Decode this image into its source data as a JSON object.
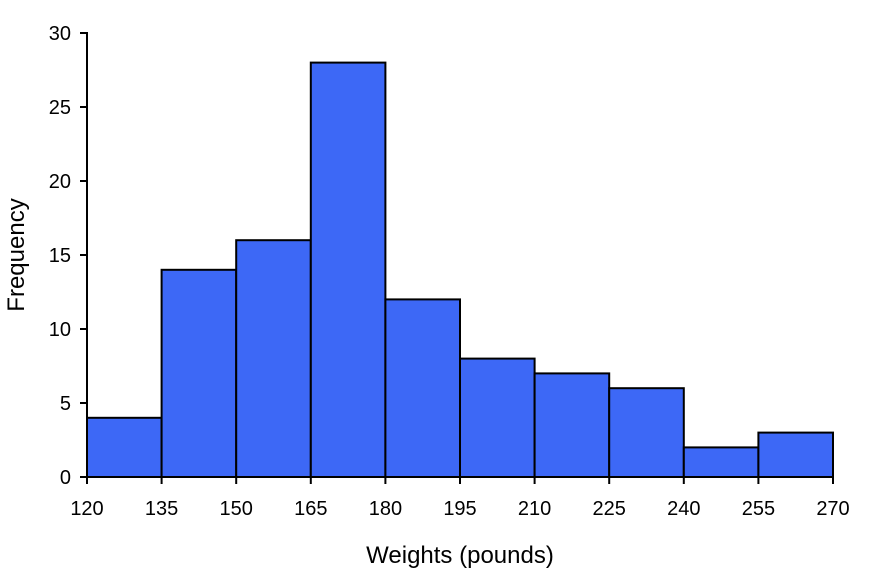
{
  "chart_data": {
    "type": "bar",
    "title": "",
    "xlabel": "Weights (pounds)",
    "ylabel": "Frequency",
    "bin_edges": [
      120,
      135,
      150,
      165,
      180,
      195,
      210,
      225,
      240,
      255,
      270
    ],
    "values": [
      4,
      14,
      16,
      28,
      12,
      8,
      7,
      6,
      2,
      3
    ],
    "xticks": [
      "120",
      "135",
      "150",
      "165",
      "180",
      "195",
      "210",
      "225",
      "240",
      "255",
      "270"
    ],
    "yticks": [
      "0",
      "5",
      "10",
      "15",
      "20",
      "25",
      "30"
    ],
    "xlim": [
      120,
      270
    ],
    "ylim": [
      0,
      30
    ],
    "grid": false,
    "bar_color": "#3d68f6"
  }
}
